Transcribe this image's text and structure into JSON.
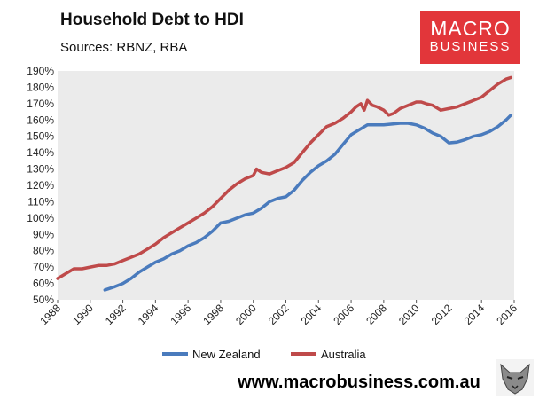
{
  "header": {
    "title": "Household Debt to HDI",
    "subtitle": "Sources: RBNZ, RBA"
  },
  "logo": {
    "line1": "MACRO",
    "line2": "BUSINESS"
  },
  "footer": {
    "url": "www.macrobusiness.com.au"
  },
  "colors": {
    "nz": "#4a7bbd",
    "au": "#bf4a4a",
    "plot_bg": "#ebebeb"
  },
  "icons": {
    "logo_mascot": "wolf-icon"
  },
  "chart_data": {
    "type": "line",
    "title": "Household Debt to HDI",
    "xlabel": "",
    "ylabel": "",
    "xlim": [
      1988,
      2016
    ],
    "ylim": [
      50,
      190
    ],
    "grid": false,
    "legend": "bottom",
    "y_ticks": [
      "50%",
      "60%",
      "70%",
      "80%",
      "90%",
      "100%",
      "110%",
      "120%",
      "130%",
      "140%",
      "150%",
      "160%",
      "170%",
      "180%",
      "190%"
    ],
    "x_ticks": [
      "1988",
      "1990",
      "1992",
      "1994",
      "1996",
      "1998",
      "2000",
      "2002",
      "2004",
      "2006",
      "2008",
      "2010",
      "2012",
      "2014",
      "2016"
    ],
    "series": [
      {
        "name": "New Zealand",
        "x": [
          1990.9,
          1991.5,
          1992,
          1992.5,
          1993,
          1993.5,
          1994,
          1994.5,
          1995,
          1995.5,
          1996,
          1996.5,
          1997,
          1997.5,
          1998,
          1998.5,
          1999,
          1999.5,
          2000,
          2000.5,
          2001,
          2001.5,
          2002,
          2002.5,
          2003,
          2003.5,
          2004,
          2004.5,
          2005,
          2005.5,
          2006,
          2006.5,
          2007,
          2007.5,
          2008,
          2008.5,
          2009,
          2009.5,
          2010,
          2010.5,
          2011,
          2011.5,
          2012,
          2012.5,
          2013,
          2013.5,
          2014,
          2014.5,
          2015,
          2015.5,
          2015.8
        ],
        "y": [
          56,
          58,
          60,
          63,
          67,
          70,
          73,
          75,
          78,
          80,
          83,
          85,
          88,
          92,
          97,
          98,
          100,
          102,
          103,
          106,
          110,
          112,
          113,
          117,
          123,
          128,
          132,
          135,
          139,
          145,
          151,
          154,
          157,
          157,
          157,
          157.5,
          158,
          158,
          157,
          155,
          152,
          150,
          146,
          146.5,
          148,
          150,
          151,
          153,
          156,
          160,
          163
        ]
      },
      {
        "name": "Australia",
        "x": [
          1988,
          1988.5,
          1989,
          1989.5,
          1990,
          1990.5,
          1991,
          1991.5,
          1992,
          1992.5,
          1993,
          1993.5,
          1994,
          1994.5,
          1995,
          1995.5,
          1996,
          1996.5,
          1997,
          1997.5,
          1998,
          1998.5,
          1999,
          1999.5,
          2000,
          2000.2,
          2000.5,
          2001,
          2001.5,
          2002,
          2002.5,
          2003,
          2003.5,
          2004,
          2004.5,
          2005,
          2005.5,
          2006,
          2006.3,
          2006.6,
          2006.8,
          2007,
          2007.3,
          2007.6,
          2008,
          2008.3,
          2008.6,
          2009,
          2009.5,
          2010,
          2010.3,
          2010.6,
          2011,
          2011.5,
          2012,
          2012.5,
          2013,
          2013.5,
          2014,
          2014.5,
          2015,
          2015.5,
          2015.8
        ],
        "y": [
          63,
          66,
          69,
          69,
          70,
          71,
          71,
          72,
          74,
          76,
          78,
          81,
          84,
          88,
          91,
          94,
          97,
          100,
          103,
          107,
          112,
          117,
          121,
          124,
          126,
          130,
          128,
          127,
          129,
          131,
          134,
          140,
          146,
          151,
          156,
          158,
          161,
          165,
          168,
          170,
          166,
          172,
          169,
          168,
          166,
          163,
          164,
          167,
          169,
          171,
          171,
          170,
          169,
          166,
          167,
          168,
          170,
          172,
          174,
          178,
          182,
          185,
          186
        ]
      }
    ]
  }
}
